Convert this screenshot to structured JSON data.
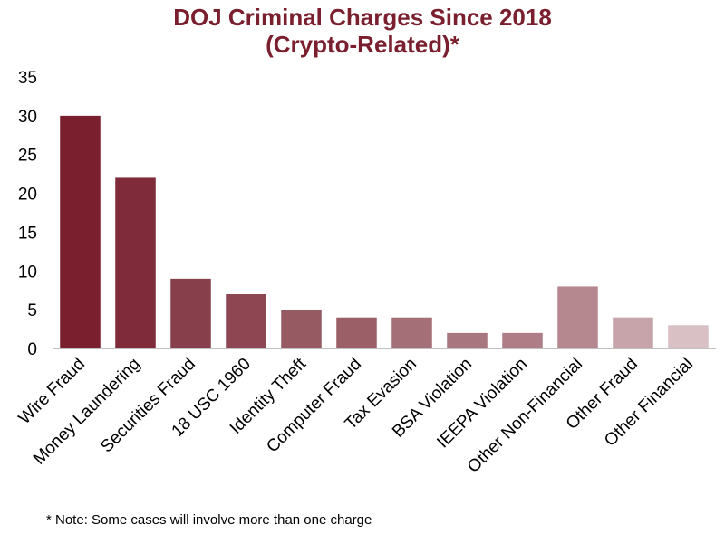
{
  "title_line1": "DOJ Criminal Charges Since 2018",
  "title_line2": "(Crypto-Related)*",
  "note": "* Note: Some cases will involve more than one charge",
  "chart_data": {
    "type": "bar",
    "categories": [
      "Wire Fraud",
      "Money Laundering",
      "Securities Fraud",
      "18 USC 1960",
      "Identity Theft",
      "Computer Fraud",
      "Tax Evasion",
      "BSA Violation",
      "IEEPA Violation",
      "Other Non-Financial",
      "Other Fraud",
      "Other Financial"
    ],
    "values": [
      30,
      22,
      9,
      7,
      5,
      4,
      4,
      2,
      2,
      8,
      4,
      3
    ],
    "colors": [
      "#7a1f2e",
      "#802b39",
      "#87404b",
      "#8e4652",
      "#965a63",
      "#9b5f68",
      "#a46f77",
      "#a8767e",
      "#ae7d85",
      "#b58890",
      "#c6a4a9",
      "#d8c0c4"
    ],
    "yticks": [
      0,
      5,
      10,
      15,
      20,
      25,
      30,
      35
    ],
    "ylim": [
      0,
      35
    ],
    "grid": false,
    "legend": "none",
    "xlabel": "",
    "ylabel": ""
  }
}
